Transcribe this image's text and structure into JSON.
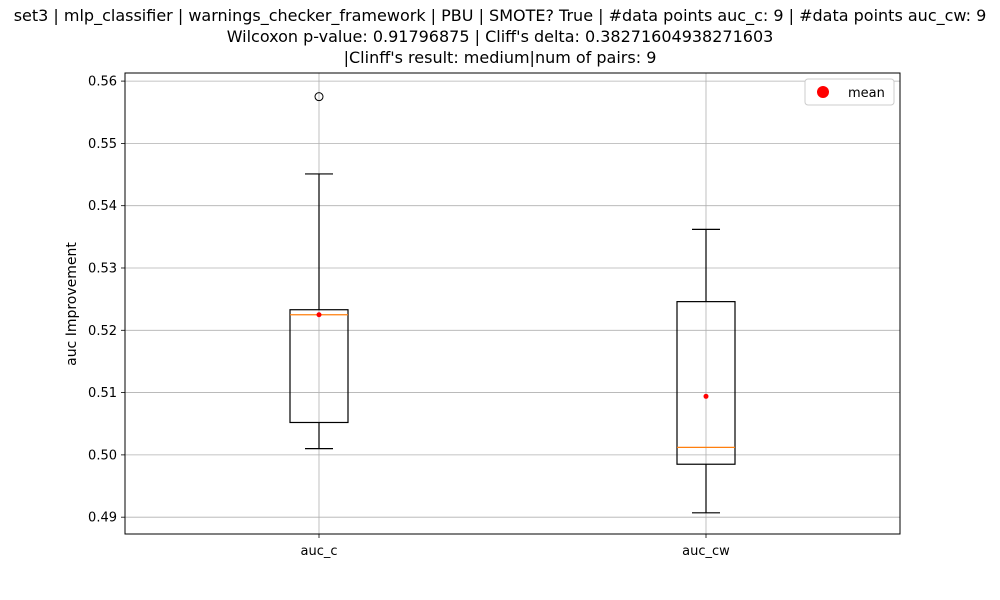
{
  "chart_data": {
    "type": "box",
    "title_lines": [
      "set3 | mlp_classifier | warnings_checker_framework | PBU | SMOTE? True | #data points auc_c: 9 | #data points auc_cw: 9",
      "Wilcoxon p-value: 0.91796875 | Cliff's delta: 0.38271604938271603",
      "|Clinff's result: medium|num of pairs: 9"
    ],
    "xlabel": "",
    "ylabel": "auc Improvement",
    "ylim": [
      0.4873,
      0.5613
    ],
    "yticks": [
      0.49,
      0.5,
      0.51,
      0.52,
      0.53,
      0.54,
      0.55,
      0.56
    ],
    "ytick_labels": [
      "0.49",
      "0.50",
      "0.51",
      "0.52",
      "0.53",
      "0.54",
      "0.55",
      "0.56"
    ],
    "grid": true,
    "legend": {
      "position": "top-right",
      "entries": [
        {
          "label": "mean",
          "color": "#ff0000"
        }
      ]
    },
    "categories": [
      "auc_c",
      "auc_cw"
    ],
    "boxes": [
      {
        "name": "auc_c",
        "whisker_low": 0.501,
        "q1": 0.5052,
        "median": 0.5225,
        "q3": 0.5233,
        "whisker_high": 0.5451,
        "mean": 0.5225,
        "fliers": [
          0.5575
        ]
      },
      {
        "name": "auc_cw",
        "whisker_low": 0.4907,
        "q1": 0.4985,
        "median": 0.5012,
        "q3": 0.5246,
        "whisker_high": 0.5362,
        "mean": 0.5094,
        "fliers": []
      }
    ],
    "colors": {
      "box": "#000000",
      "median": "#ff7f0e",
      "mean": "#ff0000",
      "grid": "#b0b0b0"
    }
  }
}
